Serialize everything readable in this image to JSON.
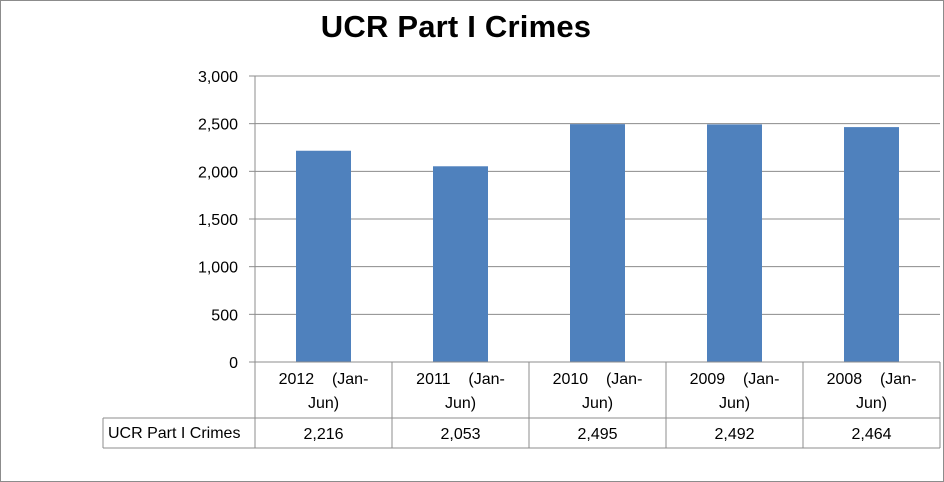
{
  "chart_data": {
    "type": "bar",
    "title": "UCR Part I Crimes",
    "categories": [
      {
        "line1": "2012    (Jan-",
        "line2": "Jun)"
      },
      {
        "line1": "2011    (Jan-",
        "line2": "Jun)"
      },
      {
        "line1": "2010    (Jan-",
        "line2": "Jun)"
      },
      {
        "line1": "2009    (Jan-",
        "line2": "Jun)"
      },
      {
        "line1": "2008    (Jan-",
        "line2": "Jun)"
      }
    ],
    "series": [
      {
        "name": "UCR Part I Crimes",
        "values": [
          2216,
          2053,
          2495,
          2492,
          2464
        ],
        "labels": [
          "2,216",
          "2,053",
          "2,495",
          "2,492",
          "2,464"
        ],
        "color": "#4f81bd"
      }
    ],
    "yticks": [
      "0",
      "500",
      "1,000",
      "1,500",
      "2,000",
      "2,500",
      "3,000"
    ],
    "ylim": [
      0,
      3000
    ],
    "grid": true,
    "legend": "data-table"
  }
}
